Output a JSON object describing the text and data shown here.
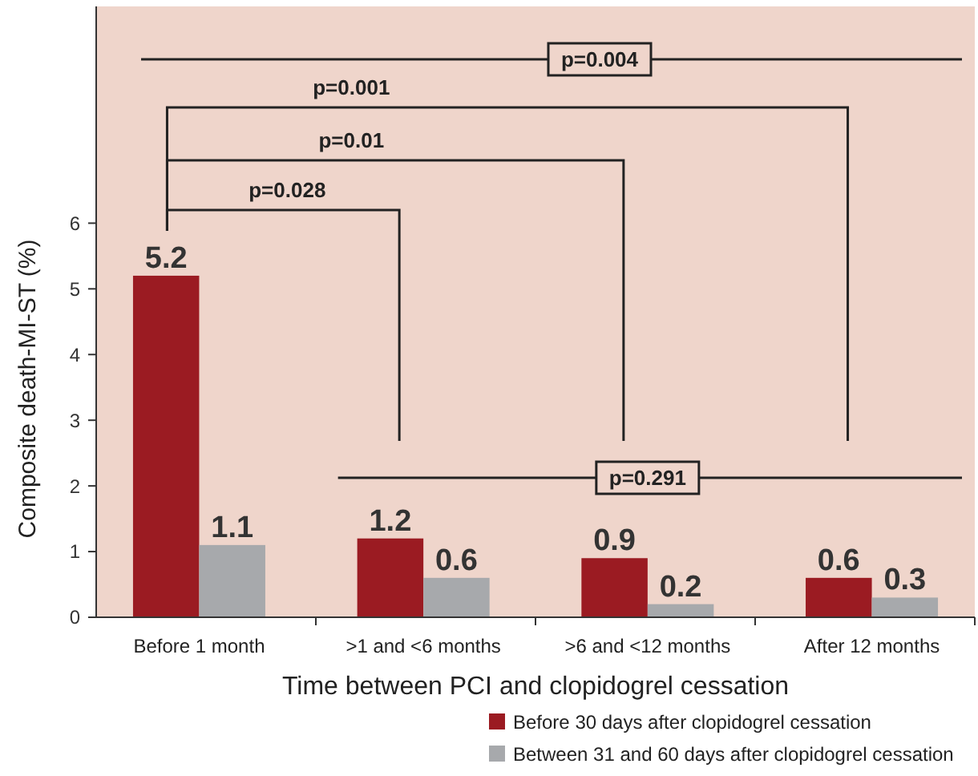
{
  "chart_data": {
    "type": "bar",
    "xlabel": "Time between PCI and clopidogrel cessation",
    "ylabel": "Composite death-MI-ST (%)",
    "categories": [
      "Before 1 month",
      ">1 and <6 months",
      ">6 and <12 months",
      "After 12 months"
    ],
    "series": [
      {
        "name": "Before 30 days after clopidogrel cessation",
        "color": "#9b1b22",
        "values": [
          5.2,
          1.2,
          0.9,
          0.6
        ]
      },
      {
        "name": "Between 31 and 60 days after clopidogrel cessation",
        "color": "#a7a9ac",
        "values": [
          1.1,
          0.6,
          0.2,
          0.3
        ]
      }
    ],
    "ylim": [
      0,
      9.3
    ],
    "yticks": [
      0,
      1,
      2,
      3,
      4,
      5,
      6
    ],
    "data_labels": true,
    "legend": "bottom right",
    "grid": false,
    "annotations": [
      "p=0.004",
      "p=0.001",
      "p=0.01",
      "p=0.028",
      "p=0.291"
    ]
  }
}
